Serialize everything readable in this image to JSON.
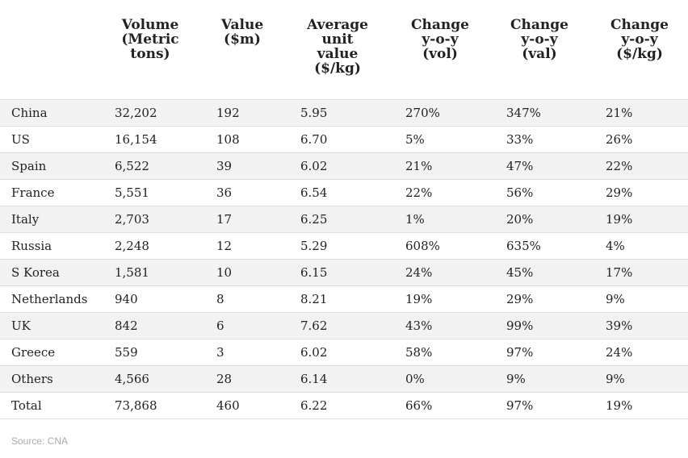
{
  "headers": {
    "country": "",
    "volume": "Volume\n(Metric\ntons)",
    "value": "Value\n($m)",
    "unit_value": "Average\nunit\nvalue\n($/kg)",
    "change_vol": "Change\ny-o-y\n(vol)",
    "change_val": "Change\ny-o-y\n(val)",
    "change_kg": "Change\ny-o-y\n($/kg)"
  },
  "rows": [
    {
      "country": "China",
      "volume": "32,202",
      "value": "192",
      "unit_value": "5.95",
      "change_vol": "270%",
      "change_val": "347%",
      "change_kg": "21%"
    },
    {
      "country": "US",
      "volume": "16,154",
      "value": "108",
      "unit_value": "6.70",
      "change_vol": "5%",
      "change_val": "33%",
      "change_kg": "26%"
    },
    {
      "country": "Spain",
      "volume": "6,522",
      "value": "39",
      "unit_value": "6.02",
      "change_vol": "21%",
      "change_val": "47%",
      "change_kg": "22%"
    },
    {
      "country": "France",
      "volume": "5,551",
      "value": "36",
      "unit_value": "6.54",
      "change_vol": "22%",
      "change_val": "56%",
      "change_kg": "29%"
    },
    {
      "country": "Italy",
      "volume": "2,703",
      "value": "17",
      "unit_value": "6.25",
      "change_vol": "1%",
      "change_val": "20%",
      "change_kg": "19%"
    },
    {
      "country": "Russia",
      "volume": "2,248",
      "value": "12",
      "unit_value": "5.29",
      "change_vol": "608%",
      "change_val": "635%",
      "change_kg": "4%"
    },
    {
      "country": "S Korea",
      "volume": "1,581",
      "value": "10",
      "unit_value": "6.15",
      "change_vol": "24%",
      "change_val": "45%",
      "change_kg": "17%"
    },
    {
      "country": "Netherlands",
      "volume": "940",
      "value": "8",
      "unit_value": "8.21",
      "change_vol": "19%",
      "change_val": "29%",
      "change_kg": "9%"
    },
    {
      "country": "UK",
      "volume": "842",
      "value": "6",
      "unit_value": "7.62",
      "change_vol": "43%",
      "change_val": "99%",
      "change_kg": "39%"
    },
    {
      "country": "Greece",
      "volume": "559",
      "value": "3",
      "unit_value": "6.02",
      "change_vol": "58%",
      "change_val": "97%",
      "change_kg": "24%"
    },
    {
      "country": "Others",
      "volume": "4,566",
      "value": "28",
      "unit_value": "6.14",
      "change_vol": "0%",
      "change_val": "9%",
      "change_kg": "9%"
    },
    {
      "country": "Total",
      "volume": "73,868",
      "value": "460",
      "unit_value": "6.22",
      "change_vol": "66%",
      "change_val": "97%",
      "change_kg": "19%"
    }
  ],
  "source": "Source: CNA"
}
